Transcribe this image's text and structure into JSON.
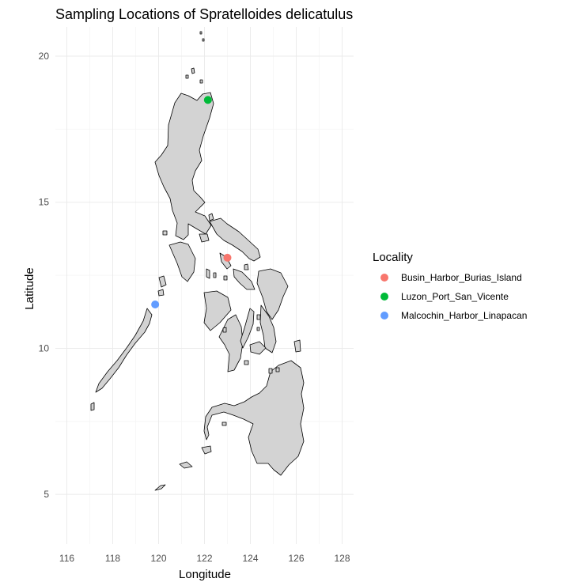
{
  "chart_data": {
    "type": "scatter",
    "title": "Sampling Locations of Spratelloides delicatulus",
    "xlabel": "Longitude",
    "ylabel": "Latitude",
    "xlim": [
      115.5,
      128.5
    ],
    "ylim": [
      3.3,
      21.0
    ],
    "x_ticks": [
      116,
      118,
      120,
      122,
      124,
      126,
      128
    ],
    "y_ticks": [
      5,
      10,
      15,
      20
    ],
    "grid": true,
    "basemap": "Philippines coastline",
    "legend": {
      "title": "Locality",
      "position": "right"
    },
    "series": [
      {
        "name": "Busin_Harbor_Burias_Island",
        "color": "#F8766D",
        "x": [
          123.0
        ],
        "y": [
          13.1
        ]
      },
      {
        "name": "Luzon_Port_San_Vicente",
        "color": "#00BA38",
        "x": [
          122.15
        ],
        "y": [
          18.5
        ]
      },
      {
        "name": "Malcochin_Harbor_Linapacan",
        "color": "#619CFF",
        "x": [
          119.85
        ],
        "y": [
          11.5
        ]
      }
    ]
  }
}
